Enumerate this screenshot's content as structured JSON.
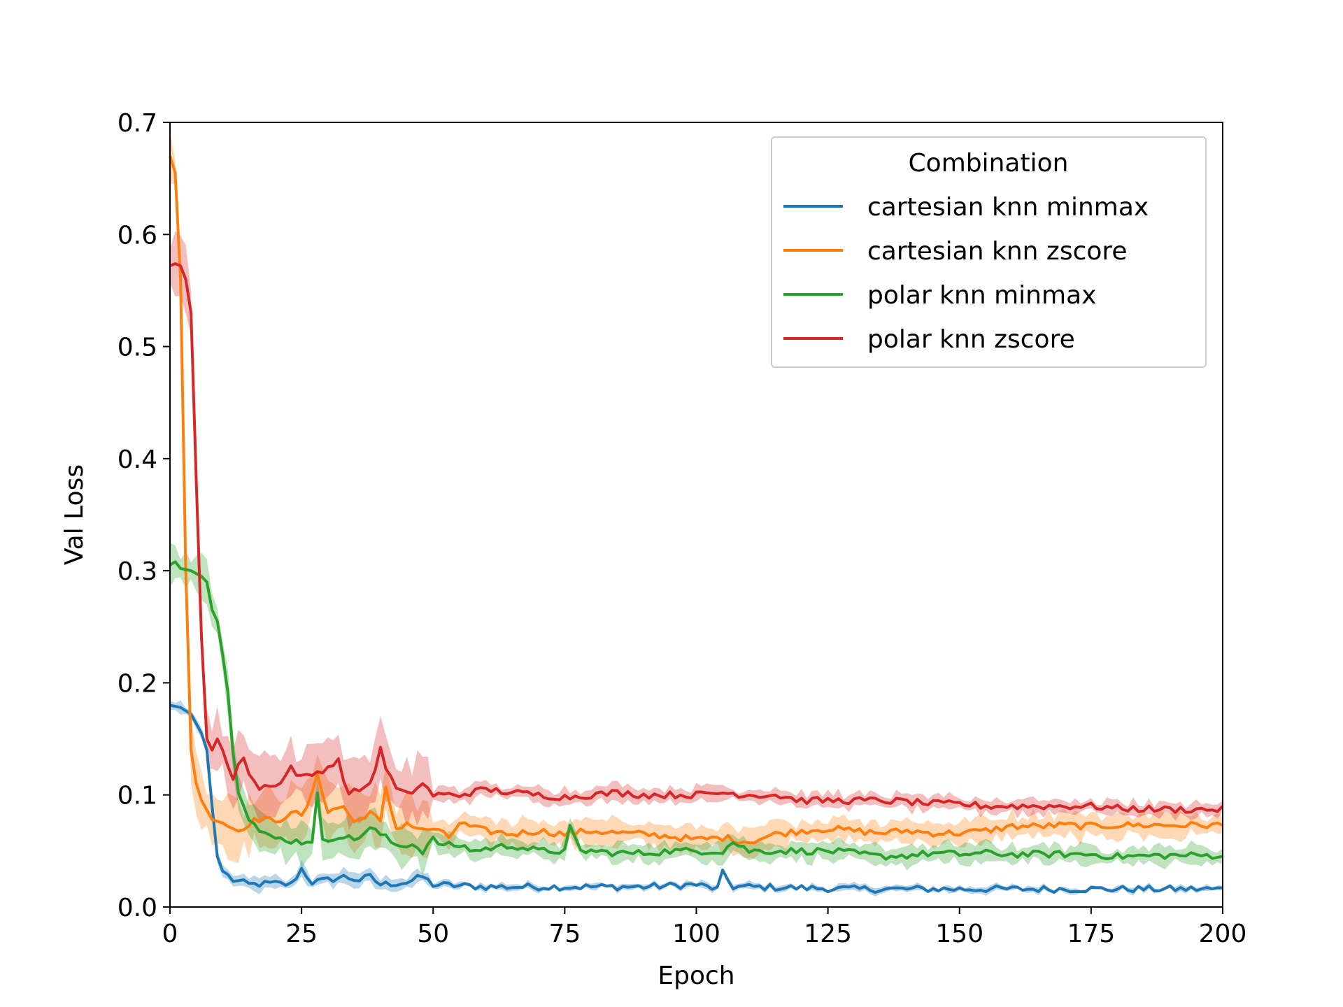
{
  "chart_data": {
    "type": "line",
    "xlabel": "Epoch",
    "ylabel": "Val Loss",
    "xlim": [
      0,
      200
    ],
    "ylim": [
      0,
      0.7
    ],
    "xticks": [
      0,
      25,
      50,
      75,
      100,
      125,
      150,
      175,
      200
    ],
    "yticks": [
      0.0,
      0.1,
      0.2,
      0.3,
      0.4,
      0.5,
      0.6,
      0.7
    ],
    "grid": false,
    "legend": {
      "title": "Combination",
      "placement": "top-right"
    },
    "shaded_band": "variability band around each series",
    "series": [
      {
        "name": "cartesian knn minmax",
        "color": "#1f77b4",
        "points": [
          [
            0,
            0.18
          ],
          [
            2,
            0.178
          ],
          [
            4,
            0.172
          ],
          [
            6,
            0.155
          ],
          [
            7,
            0.14
          ],
          [
            8,
            0.09
          ],
          [
            9,
            0.045
          ],
          [
            10,
            0.032
          ],
          [
            12,
            0.024
          ],
          [
            15,
            0.02
          ],
          [
            20,
            0.021
          ],
          [
            23,
            0.02
          ],
          [
            25,
            0.034
          ],
          [
            27,
            0.022
          ],
          [
            30,
            0.024
          ],
          [
            33,
            0.027
          ],
          [
            36,
            0.024
          ],
          [
            38,
            0.027
          ],
          [
            40,
            0.02
          ],
          [
            45,
            0.022
          ],
          [
            48,
            0.027
          ],
          [
            50,
            0.02
          ],
          [
            55,
            0.019
          ],
          [
            60,
            0.018
          ],
          [
            70,
            0.018
          ],
          [
            80,
            0.018
          ],
          [
            90,
            0.018
          ],
          [
            100,
            0.02
          ],
          [
            104,
            0.016
          ],
          [
            105,
            0.03
          ],
          [
            107,
            0.018
          ],
          [
            110,
            0.018
          ],
          [
            120,
            0.017
          ],
          [
            130,
            0.016
          ],
          [
            140,
            0.016
          ],
          [
            150,
            0.016
          ],
          [
            160,
            0.016
          ],
          [
            170,
            0.016
          ],
          [
            180,
            0.016
          ],
          [
            190,
            0.016
          ],
          [
            200,
            0.016
          ]
        ],
        "band": [
          0.01,
          0.005
        ]
      },
      {
        "name": "cartesian knn zscore",
        "color": "#ff7f0e",
        "points": [
          [
            0,
            0.67
          ],
          [
            1,
            0.655
          ],
          [
            2,
            0.56
          ],
          [
            3,
            0.3
          ],
          [
            4,
            0.14
          ],
          [
            5,
            0.11
          ],
          [
            6,
            0.095
          ],
          [
            8,
            0.078
          ],
          [
            10,
            0.075
          ],
          [
            13,
            0.068
          ],
          [
            15,
            0.075
          ],
          [
            18,
            0.08
          ],
          [
            20,
            0.074
          ],
          [
            23,
            0.086
          ],
          [
            25,
            0.08
          ],
          [
            27,
            0.1
          ],
          [
            28,
            0.12
          ],
          [
            30,
            0.085
          ],
          [
            33,
            0.09
          ],
          [
            35,
            0.075
          ],
          [
            38,
            0.085
          ],
          [
            40,
            0.075
          ],
          [
            41,
            0.105
          ],
          [
            43,
            0.07
          ],
          [
            45,
            0.075
          ],
          [
            48,
            0.068
          ],
          [
            50,
            0.07
          ],
          [
            53,
            0.062
          ],
          [
            55,
            0.075
          ],
          [
            58,
            0.07
          ],
          [
            60,
            0.068
          ],
          [
            65,
            0.065
          ],
          [
            70,
            0.068
          ],
          [
            75,
            0.065
          ],
          [
            80,
            0.068
          ],
          [
            85,
            0.066
          ],
          [
            90,
            0.065
          ],
          [
            95,
            0.063
          ],
          [
            100,
            0.06
          ],
          [
            105,
            0.062
          ],
          [
            110,
            0.058
          ],
          [
            115,
            0.065
          ],
          [
            120,
            0.068
          ],
          [
            125,
            0.07
          ],
          [
            130,
            0.068
          ],
          [
            135,
            0.066
          ],
          [
            140,
            0.068
          ],
          [
            145,
            0.066
          ],
          [
            150,
            0.066
          ],
          [
            155,
            0.068
          ],
          [
            160,
            0.072
          ],
          [
            165,
            0.072
          ],
          [
            170,
            0.073
          ],
          [
            175,
            0.072
          ],
          [
            180,
            0.073
          ],
          [
            190,
            0.073
          ],
          [
            200,
            0.073
          ]
        ],
        "band": [
          0.04,
          0.02
        ]
      },
      {
        "name": "polar knn minmax",
        "color": "#2ca02c",
        "points": [
          [
            0,
            0.305
          ],
          [
            1,
            0.308
          ],
          [
            2,
            0.302
          ],
          [
            4,
            0.3
          ],
          [
            6,
            0.295
          ],
          [
            7,
            0.29
          ],
          [
            8,
            0.265
          ],
          [
            9,
            0.255
          ],
          [
            10,
            0.225
          ],
          [
            11,
            0.19
          ],
          [
            12,
            0.14
          ],
          [
            13,
            0.105
          ],
          [
            15,
            0.08
          ],
          [
            17,
            0.068
          ],
          [
            19,
            0.062
          ],
          [
            22,
            0.06
          ],
          [
            25,
            0.058
          ],
          [
            27,
            0.06
          ],
          [
            28,
            0.1
          ],
          [
            29,
            0.058
          ],
          [
            32,
            0.064
          ],
          [
            35,
            0.06
          ],
          [
            38,
            0.07
          ],
          [
            40,
            0.065
          ],
          [
            43,
            0.055
          ],
          [
            46,
            0.056
          ],
          [
            48,
            0.05
          ],
          [
            50,
            0.06
          ],
          [
            52,
            0.055
          ],
          [
            55,
            0.055
          ],
          [
            58,
            0.05
          ],
          [
            60,
            0.052
          ],
          [
            65,
            0.055
          ],
          [
            70,
            0.05
          ],
          [
            75,
            0.05
          ],
          [
            76,
            0.07
          ],
          [
            78,
            0.05
          ],
          [
            80,
            0.05
          ],
          [
            85,
            0.048
          ],
          [
            90,
            0.048
          ],
          [
            95,
            0.05
          ],
          [
            100,
            0.05
          ],
          [
            105,
            0.05
          ],
          [
            107,
            0.058
          ],
          [
            110,
            0.05
          ],
          [
            115,
            0.05
          ],
          [
            120,
            0.05
          ],
          [
            125,
            0.05
          ],
          [
            130,
            0.048
          ],
          [
            135,
            0.045
          ],
          [
            140,
            0.046
          ],
          [
            145,
            0.048
          ],
          [
            150,
            0.047
          ],
          [
            155,
            0.048
          ],
          [
            160,
            0.047
          ],
          [
            165,
            0.047
          ],
          [
            170,
            0.047
          ],
          [
            175,
            0.047
          ],
          [
            180,
            0.045
          ],
          [
            190,
            0.046
          ],
          [
            200,
            0.046
          ]
        ],
        "band": [
          0.03,
          0.015
        ]
      },
      {
        "name": "polar knn zscore",
        "color": "#d62728",
        "points": [
          [
            0,
            0.572
          ],
          [
            1,
            0.574
          ],
          [
            2,
            0.572
          ],
          [
            3,
            0.56
          ],
          [
            4,
            0.53
          ],
          [
            5,
            0.38
          ],
          [
            6,
            0.24
          ],
          [
            7,
            0.15
          ],
          [
            8,
            0.14
          ],
          [
            9,
            0.15
          ],
          [
            10,
            0.14
          ],
          [
            11,
            0.125
          ],
          [
            12,
            0.115
          ],
          [
            13,
            0.125
          ],
          [
            14,
            0.135
          ],
          [
            15,
            0.12
          ],
          [
            17,
            0.105
          ],
          [
            19,
            0.11
          ],
          [
            21,
            0.11
          ],
          [
            23,
            0.125
          ],
          [
            25,
            0.115
          ],
          [
            28,
            0.12
          ],
          [
            30,
            0.125
          ],
          [
            32,
            0.13
          ],
          [
            34,
            0.1
          ],
          [
            36,
            0.105
          ],
          [
            38,
            0.11
          ],
          [
            40,
            0.14
          ],
          [
            41,
            0.125
          ],
          [
            43,
            0.105
          ],
          [
            45,
            0.1
          ],
          [
            48,
            0.11
          ],
          [
            50,
            0.1
          ],
          [
            55,
            0.1
          ],
          [
            60,
            0.105
          ],
          [
            65,
            0.102
          ],
          [
            70,
            0.1
          ],
          [
            75,
            0.098
          ],
          [
            80,
            0.1
          ],
          [
            85,
            0.102
          ],
          [
            90,
            0.1
          ],
          [
            95,
            0.1
          ],
          [
            100,
            0.1
          ],
          [
            105,
            0.102
          ],
          [
            110,
            0.1
          ],
          [
            115,
            0.1
          ],
          [
            120,
            0.095
          ],
          [
            125,
            0.095
          ],
          [
            130,
            0.095
          ],
          [
            135,
            0.095
          ],
          [
            140,
            0.094
          ],
          [
            145,
            0.092
          ],
          [
            150,
            0.092
          ],
          [
            155,
            0.09
          ],
          [
            160,
            0.09
          ],
          [
            165,
            0.09
          ],
          [
            170,
            0.09
          ],
          [
            175,
            0.09
          ],
          [
            180,
            0.088
          ],
          [
            190,
            0.087
          ],
          [
            200,
            0.087
          ]
        ],
        "band": [
          0.045,
          0.012
        ]
      }
    ]
  }
}
